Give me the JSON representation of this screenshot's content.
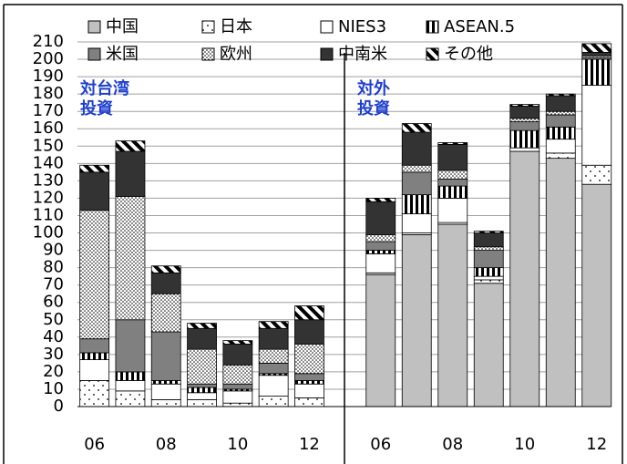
{
  "chart_data": {
    "type": "bar",
    "stacked": true,
    "categories": [
      "06",
      null,
      "08",
      null,
      "10",
      null,
      "12"
    ],
    "ylim": [
      0,
      210
    ],
    "yticks": [
      0,
      10,
      20,
      30,
      40,
      50,
      60,
      70,
      80,
      90,
      100,
      110,
      120,
      130,
      140,
      150,
      160,
      170,
      180,
      190,
      200,
      210
    ],
    "grid": true,
    "series": [
      {
        "name": "中国",
        "color": "#c0c0c0",
        "pattern": "solid"
      },
      {
        "name": "日本",
        "color": "#ffffff",
        "pattern": "sparse-dots"
      },
      {
        "name": "NIES3",
        "color": "#ffffff",
        "pattern": "solid"
      },
      {
        "name": "ASEAN.5",
        "color": "#000000",
        "pattern": "vertical-stripes"
      },
      {
        "name": "米国",
        "color": "#808080",
        "pattern": "solid"
      },
      {
        "name": "欧州",
        "color": "#000000",
        "pattern": "dense-dots"
      },
      {
        "name": "中南米",
        "color": "#333333",
        "pattern": "solid"
      },
      {
        "name": "その他",
        "color": "#000000",
        "pattern": "diagonal-stripes"
      }
    ],
    "panels": [
      {
        "label": [
          "対台湾",
          "投資"
        ],
        "series": [
          {
            "values": [
              0,
              0,
              0,
              0,
              0,
              0,
              0
            ]
          },
          {
            "values": [
              15,
              9,
              4,
              4,
              2,
              6,
              5
            ]
          },
          {
            "values": [
              12,
              6,
              9,
              4,
              7,
              12,
              8
            ]
          },
          {
            "values": [
              4,
              5,
              2,
              3,
              1,
              1,
              2
            ]
          },
          {
            "values": [
              8,
              30,
              28,
              2,
              3,
              6,
              4
            ]
          },
          {
            "values": [
              74,
              71,
              22,
              20,
              11,
              8,
              17
            ]
          },
          {
            "values": [
              22,
              26,
              12,
              12,
              12,
              12,
              14
            ]
          },
          {
            "values": [
              4,
              6,
              4,
              3,
              2,
              4,
              8
            ]
          }
        ]
      },
      {
        "label": [
          "対外",
          "投資"
        ],
        "series": [
          {
            "values": [
              76,
              99,
              105,
              71,
              147,
              143,
              128
            ]
          },
          {
            "values": [
              1,
              1,
              1,
              2,
              0,
              3,
              11
            ]
          },
          {
            "values": [
              11,
              11,
              14,
              2,
              2,
              8,
              46
            ]
          },
          {
            "values": [
              2,
              11,
              7,
              5,
              10,
              7,
              15
            ]
          },
          {
            "values": [
              5,
              13,
              4,
              10,
              5,
              7,
              1
            ]
          },
          {
            "values": [
              4,
              4,
              5,
              2,
              2,
              2,
              1
            ]
          },
          {
            "values": [
              19,
              19,
              15,
              8,
              7,
              9,
              2
            ]
          },
          {
            "values": [
              2,
              5,
              1,
              1,
              1,
              1,
              5
            ]
          }
        ]
      }
    ]
  }
}
